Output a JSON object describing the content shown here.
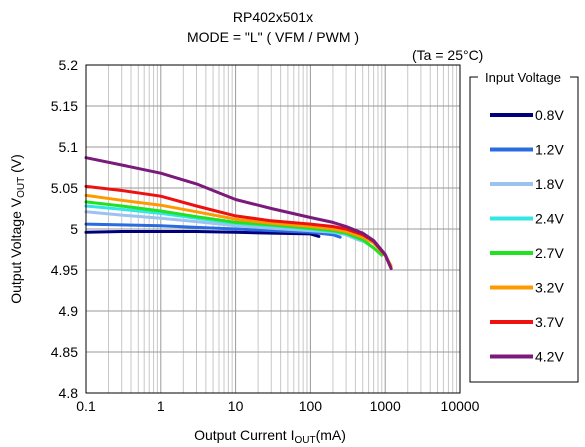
{
  "chart_data": {
    "type": "line",
    "title": "RP402x501x",
    "subtitle": "MODE = \"L\" ( VFM / PWM )",
    "condition": "(Ta = 25°C)",
    "xlabel": "Output Current  I",
    "xlabel_sub": "OUT",
    "xlabel_tail": "(mA)",
    "ylabel": "Output Voltage V",
    "ylabel_sub": "OUT",
    "ylabel_tail": " (V)",
    "x_scale": "log",
    "xlim": [
      0.1,
      10000
    ],
    "ylim": [
      4.8,
      5.2
    ],
    "x_ticks": [
      "0.1",
      "1",
      "10",
      "100",
      "1000",
      "10000"
    ],
    "y_ticks": [
      "4.8",
      "4.85",
      "4.9",
      "4.95",
      "5",
      "5.05",
      "5.1",
      "5.15",
      "5.2"
    ],
    "grid": true,
    "legend_title": "Input Voltage",
    "legend_position": "right",
    "series": [
      {
        "name": "0.8V",
        "color": "#00007a",
        "x": [
          0.1,
          0.3,
          1,
          3,
          10,
          30,
          100,
          130
        ],
        "y": [
          4.996,
          4.997,
          4.997,
          4.997,
          4.996,
          4.995,
          4.994,
          4.991
        ]
      },
      {
        "name": "1.2V",
        "color": "#2b6be0",
        "x": [
          0.1,
          0.3,
          1,
          3,
          10,
          30,
          100,
          200,
          250
        ],
        "y": [
          5.006,
          5.005,
          5.004,
          5.002,
          5.0,
          4.998,
          4.996,
          4.993,
          4.99
        ]
      },
      {
        "name": "1.8V",
        "color": "#9cc3f0",
        "x": [
          0.1,
          0.3,
          1,
          3,
          10,
          30,
          100,
          200,
          300,
          400,
          500
        ],
        "y": [
          5.021,
          5.017,
          5.013,
          5.009,
          5.004,
          5.001,
          4.998,
          4.996,
          4.993,
          4.988,
          4.985
        ]
      },
      {
        "name": "2.4V",
        "color": "#33e6e6",
        "x": [
          0.1,
          0.3,
          1,
          3,
          10,
          30,
          100,
          200,
          300,
          500,
          700
        ],
        "y": [
          5.028,
          5.024,
          5.019,
          5.013,
          5.007,
          5.004,
          5.0,
          4.997,
          4.994,
          4.986,
          4.977
        ]
      },
      {
        "name": "2.7V",
        "color": "#22e022",
        "x": [
          0.1,
          0.3,
          1,
          3,
          10,
          30,
          100,
          200,
          300,
          500,
          700,
          900
        ],
        "y": [
          5.033,
          5.028,
          5.022,
          5.015,
          5.008,
          5.005,
          5.001,
          4.998,
          4.995,
          4.987,
          4.977,
          4.968
        ]
      },
      {
        "name": "3.2V",
        "color": "#ff9900",
        "x": [
          0.1,
          0.3,
          1,
          3,
          10,
          30,
          100,
          200,
          300,
          500,
          700,
          1000,
          1200
        ],
        "y": [
          5.041,
          5.035,
          5.029,
          5.021,
          5.012,
          5.007,
          5.003,
          5.0,
          4.997,
          4.99,
          4.983,
          4.968,
          4.955
        ]
      },
      {
        "name": "3.7V",
        "color": "#ee1111",
        "x": [
          0.1,
          0.3,
          1,
          3,
          10,
          30,
          100,
          200,
          300,
          500,
          700,
          1000,
          1200
        ],
        "y": [
          5.052,
          5.047,
          5.04,
          5.028,
          5.016,
          5.01,
          5.006,
          5.003,
          5.0,
          4.993,
          4.985,
          4.968,
          4.952
        ]
      },
      {
        "name": "4.2V",
        "color": "#7a1a7a",
        "x": [
          0.1,
          0.3,
          1,
          3,
          10,
          30,
          100,
          200,
          300,
          500,
          700,
          1000,
          1200
        ],
        "y": [
          5.087,
          5.078,
          5.068,
          5.055,
          5.036,
          5.025,
          5.014,
          5.008,
          5.003,
          4.995,
          4.986,
          4.969,
          4.952
        ]
      }
    ]
  }
}
